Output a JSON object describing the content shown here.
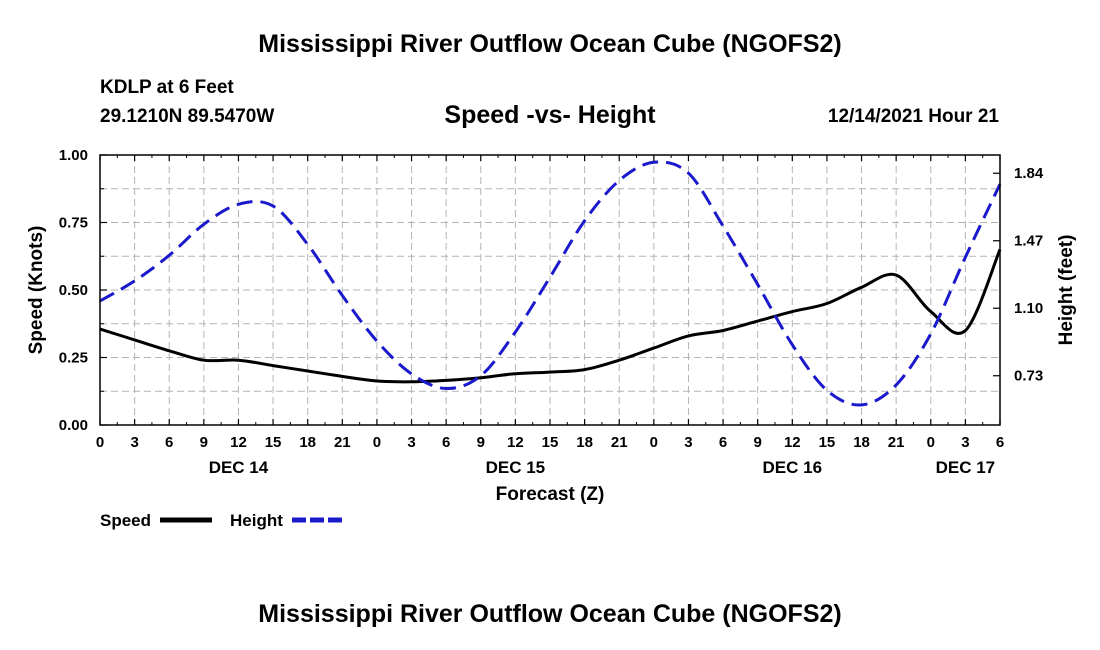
{
  "header": {
    "title": "Mississippi River Outflow Ocean Cube (NGOFS2)",
    "station": "KDLP at 6 Feet",
    "coordinates": "29.1210N  89.5470W",
    "subtitle": "Speed -vs- Height",
    "datetime": "12/14/2021 Hour 21"
  },
  "footer": {
    "title": "Mississippi River Outflow Ocean Cube (NGOFS2)"
  },
  "chart_data": {
    "type": "line",
    "title": "Speed -vs- Height",
    "xlabel": "Forecast (Z)",
    "ylabel": "Speed (Knots)",
    "y2label": "Height (feet)",
    "x_range_hours": [
      0,
      78
    ],
    "x_ticks": [
      "0",
      "3",
      "6",
      "9",
      "12",
      "15",
      "18",
      "21",
      "0",
      "3",
      "6",
      "9",
      "12",
      "15",
      "18",
      "21",
      "0",
      "3",
      "6",
      "9",
      "12",
      "15",
      "18",
      "21",
      "0",
      "3",
      "6"
    ],
    "day_labels": [
      {
        "label": "DEC 14",
        "hour": 12
      },
      {
        "label": "DEC 15",
        "hour": 36
      },
      {
        "label": "DEC 16",
        "hour": 60
      },
      {
        "label": "DEC 17",
        "hour": 75
      }
    ],
    "ylim": [
      0,
      1.0
    ],
    "y_ticks": [
      "0.00",
      "0.25",
      "0.50",
      "0.75",
      "1.00"
    ],
    "y2lim": [
      0.46,
      1.94
    ],
    "y2_ticks": [
      {
        "label": "0.73",
        "value": 0.73
      },
      {
        "label": "1.10",
        "value": 1.1
      },
      {
        "label": "1.47",
        "value": 1.47
      },
      {
        "label": "1.84",
        "value": 1.84
      }
    ],
    "grid": true,
    "legend": [
      {
        "label": "Speed",
        "color": "#000000",
        "style": "solid"
      },
      {
        "label": "Height",
        "color": "#1a1acc",
        "style": "dashed"
      }
    ],
    "series": [
      {
        "name": "Speed",
        "axis": "left",
        "color": "#000000",
        "style": "solid",
        "x": [
          0,
          3,
          6,
          9,
          12,
          15,
          18,
          21,
          24,
          27,
          30,
          33,
          36,
          39,
          42,
          45,
          48,
          51,
          54,
          57,
          60,
          63,
          66,
          69,
          72,
          75,
          78
        ],
        "values": [
          0.355,
          0.315,
          0.275,
          0.24,
          0.24,
          0.22,
          0.2,
          0.18,
          0.163,
          0.16,
          0.165,
          0.175,
          0.19,
          0.196,
          0.205,
          0.24,
          0.285,
          0.33,
          0.35,
          0.385,
          0.42,
          0.45,
          0.51,
          0.555,
          0.42,
          0.35,
          0.65
        ]
      },
      {
        "name": "Height",
        "axis": "right",
        "color": "#1a1acc",
        "style": "dashed",
        "x": [
          0,
          3,
          6,
          9,
          12,
          15,
          18,
          21,
          24,
          27,
          30,
          33,
          36,
          39,
          42,
          45,
          48,
          51,
          54,
          57,
          60,
          63,
          66,
          69,
          72,
          75,
          78
        ],
        "values": [
          1.14,
          1.25,
          1.39,
          1.56,
          1.67,
          1.66,
          1.45,
          1.17,
          0.92,
          0.74,
          0.66,
          0.73,
          0.97,
          1.27,
          1.58,
          1.8,
          1.9,
          1.84,
          1.55,
          1.23,
          0.9,
          0.65,
          0.57,
          0.68,
          0.96,
          1.38,
          1.78
        ]
      }
    ]
  }
}
